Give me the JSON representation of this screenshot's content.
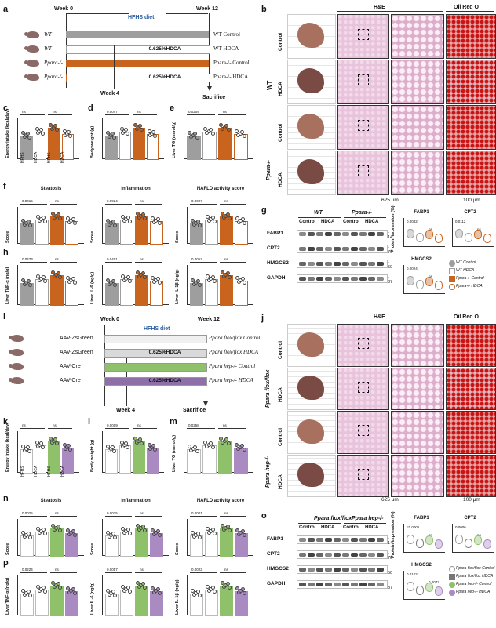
{
  "panels": {
    "a": {
      "label": "a",
      "week0": "Week 0",
      "week12": "Week 12",
      "week4": "Week 4",
      "diet": "HFHS diet",
      "sacrifice": "Sacrifice",
      "groups": [
        {
          "geno": "WT",
          "bar_text": "",
          "label": "WT Control",
          "color": "#9e9e9e"
        },
        {
          "geno": "WT",
          "bar_text": "0.625%HDCA",
          "label": "WT HDCA",
          "color": "#ffffff"
        },
        {
          "geno": "Ppara-/-",
          "bar_text": "",
          "label": "Ppara-/- Control",
          "color": "#c8641e"
        },
        {
          "geno": "Ppara-/-",
          "bar_text": "0.625%HDCA",
          "label": "Ppara-/- HDCA",
          "color": "#ffffff"
        }
      ]
    },
    "i": {
      "label": "i",
      "week0": "Week 0",
      "week12": "Week 12",
      "week4": "Week 4",
      "diet": "HFHS diet",
      "sacrifice": "Sacrifice",
      "groups": [
        {
          "geno": "AAV-ZsGreen",
          "bar_text": "",
          "label": "Ppara flox/flox Control",
          "color": "#f0f0f0"
        },
        {
          "geno": "AAV-ZsGreen",
          "bar_text": "0.625%HDCA",
          "label": "Ppara flox/flox HDCA",
          "color": "#d9d9d9"
        },
        {
          "geno": "AAV-Cre",
          "bar_text": "",
          "label": "Ppara hep-/- Control",
          "color": "#8fc16a"
        },
        {
          "geno": "AAV-Cre",
          "bar_text": "0.625%HDCA",
          "label": "Ppara hep-/- HDCA",
          "color": "#8e6fa8"
        }
      ]
    },
    "b": {
      "label": "b",
      "he": "H&E",
      "oro": "Oil Red O",
      "scale1": "625 μm",
      "scale2": "100 μm",
      "wt": "WT",
      "ko": "Ppara-/-",
      "rows": [
        "Control",
        "HDCA",
        "Control",
        "HDCA"
      ]
    },
    "j": {
      "label": "j",
      "he": "H&E",
      "oro": "Oil Red O",
      "scale1": "625 μm",
      "scale2": "100 μm",
      "flox": "Ppara flox/flox",
      "hep": "Ppara hep-/-",
      "rows": [
        "Control",
        "HDCA",
        "Control",
        "HDCA"
      ]
    },
    "c": {
      "label": "c",
      "ylabel": "Energy intake (kcal/day)",
      "ns1": "ns",
      "ns2": "ns",
      "x": [
        "HFHS",
        "HDCA",
        "HFHS",
        "HDCA"
      ]
    },
    "d": {
      "label": "d",
      "ylabel": "Body weight (g)",
      "p1": "0.0047",
      "ns2": "ns"
    },
    "e": {
      "label": "e",
      "ylabel": "Liver TG (mmol/g)",
      "p1": "0.0209",
      "ns2": "ns"
    },
    "f": {
      "label": "f",
      "titles": [
        "Steatosis",
        "Inflammation",
        "NAFLD activity score"
      ],
      "p": [
        "0.0015",
        "0.0924",
        "0.0027"
      ],
      "ns": "ns",
      "ylabel": "Score"
    },
    "h": {
      "label": "h",
      "ylabels": [
        "Liver TNF-α (ng/g)",
        "Liver IL-6 (ng/g)",
        "Liver IL-1β (ng/g)"
      ],
      "p": [
        "0.0473",
        "0.0401",
        "0.0052"
      ],
      "ns": "ns"
    },
    "g": {
      "label": "g",
      "wt": "WT",
      "ko": "Ppara-/-",
      "cols": [
        "Control",
        "HDCA",
        "Control",
        "HDCA"
      ],
      "proteins": [
        "FABP1",
        "CPT2",
        "HMGCS2",
        "GAPDH"
      ],
      "kda": [
        "14",
        "70",
        "50",
        "37"
      ],
      "plots": [
        {
          "title": "FABP1",
          "p": "0.0042",
          "ns": "ns"
        },
        {
          "title": "CPT2",
          "p": "0.0112",
          "ns": "ns"
        },
        {
          "title": "HMGCS2",
          "p": "0.0024",
          "ns": "ns"
        }
      ],
      "ylabel": "Protein expression (%)",
      "legend": [
        "WT Control",
        "WT HDCA",
        "Ppara-/- Control",
        "Ppara-/- HDCA"
      ]
    },
    "k": {
      "label": "k",
      "ylabel": "Energy intake (kcal/day)",
      "ns1": "ns",
      "ns2": "ns",
      "x": [
        "HFHS",
        "HDCA",
        "HFHS",
        "HDCA"
      ]
    },
    "l": {
      "label": "l",
      "ylabel": "Body weight (g)",
      "p1": "0.0009",
      "ns2": "ns"
    },
    "m": {
      "label": "m",
      "ylabel": "Liver TG (mmol/g)",
      "p1": "0.0258",
      "ns2": "ns"
    },
    "n": {
      "label": "n",
      "titles": [
        "Steatosis",
        "Inflammation",
        "NAFLD activity score"
      ],
      "p": [
        "0.0025",
        "0.0025",
        "0.0001"
      ],
      "ns": "ns",
      "ylabel": "Score"
    },
    "p": {
      "label": "p",
      "ylabels": [
        "Liver TNF-α (ng/g)",
        "Liver IL-6 (ng/g)",
        "Liver IL-1β (ng/g)"
      ],
      "p": [
        "0.0224",
        "0.0057",
        "0.0022"
      ],
      "ns": "ns"
    },
    "o": {
      "label": "o",
      "flox": "Ppara flox/flox",
      "hep": "Ppara hep-/-",
      "cols": [
        "Control",
        "HDCA",
        "Control",
        "HDCA"
      ],
      "proteins": [
        "FABP1",
        "CPT2",
        "HMGCS2",
        "GAPDH"
      ],
      "kda": [
        "14",
        "70",
        "50",
        "37"
      ],
      "plots": [
        {
          "title": "FABP1",
          "p": "<0.0001",
          "ns": "ns"
        },
        {
          "title": "CPT2",
          "p": "0.0006",
          "ns": "ns"
        },
        {
          "title": "HMGCS2",
          "p": "0.0102",
          "ns": "0.0073"
        }
      ],
      "ylabel": "Protein expression (%)",
      "legend": [
        "Ppara flox/flox Control",
        "Ppara flox/flox HDCA",
        "Ppara hep-/- Control",
        "Ppara hep-/- HDCA"
      ]
    }
  },
  "colors": {
    "grey": "#9e9e9e",
    "orange": "#c8641e",
    "green": "#8fc16a",
    "purple": "#a98bc2",
    "he_pink": "#e9c6dc",
    "oro_red": "#d01b1b"
  }
}
